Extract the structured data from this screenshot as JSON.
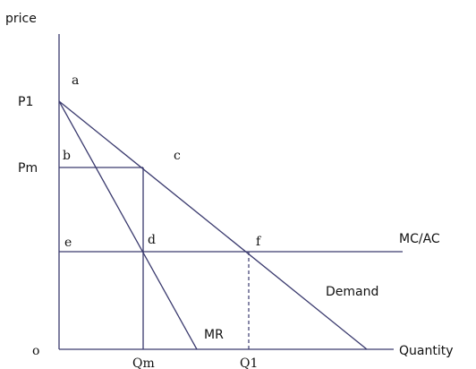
{
  "axes": {
    "y_label": "price",
    "x_label": "Quantity",
    "origin_label": "o"
  },
  "tick_labels": {
    "p1": "P1",
    "pm": "Pm",
    "qm": "Qm",
    "q1": "Q1"
  },
  "curves": {
    "demand": "Demand",
    "mr": "MR",
    "mc_ac": "MC/AC"
  },
  "points": {
    "a": "a",
    "b": "b",
    "c": "c",
    "d": "d",
    "e": "e",
    "f": "f"
  },
  "colors": {
    "lines": "#3a3a6e"
  }
}
